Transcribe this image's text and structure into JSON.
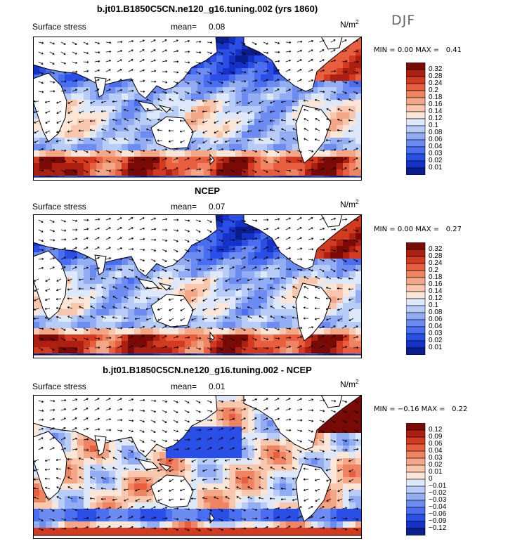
{
  "season": "DJF",
  "colorbar_palette": [
    "#0a1e8c",
    "#1432c8",
    "#2a4fe6",
    "#4a6ef0",
    "#6c8cf2",
    "#93adf5",
    "#b8ccf8",
    "#dde8fb",
    "#fbe6d8",
    "#f8c7ae",
    "#f4a787",
    "#ef8462",
    "#e85e3f",
    "#d33b21",
    "#ad1f10",
    "#7a0a05"
  ],
  "panels": [
    {
      "title": "b.jt01.B1850C5CN.ne120_g16.tuning.002 (yrs 1860)",
      "field": "Surface stress",
      "mean_label": "mean=",
      "mean": "0.08",
      "units": "N/m",
      "units_exp": "2",
      "min_label": "MIN =",
      "min": "0.00",
      "max_label": "MAX =",
      "max": "0.41",
      "colorbar_ticks": [
        "0.32",
        "0.28",
        "0.24",
        "0.2",
        "0.18",
        "0.16",
        "0.14",
        "0.12",
        "0.1",
        "0.08",
        "0.06",
        "0.04",
        "0.03",
        "0.02",
        "0.01"
      ]
    },
    {
      "title": "NCEP",
      "field": "Surface stress",
      "mean_label": "mean=",
      "mean": "0.07",
      "units": "N/m",
      "units_exp": "2",
      "min_label": "MIN =",
      "min": "0.00",
      "max_label": "MAX =",
      "max": "0.27",
      "colorbar_ticks": [
        "0.32",
        "0.28",
        "0.24",
        "0.2",
        "0.18",
        "0.16",
        "0.14",
        "0.12",
        "0.1",
        "0.08",
        "0.06",
        "0.04",
        "0.03",
        "0.02",
        "0.01"
      ]
    },
    {
      "title": "b.jt01.B1850C5CN.ne120_g16.tuning.002 - NCEP",
      "field": "Surface stress",
      "mean_label": "mean=",
      "mean": "0.01",
      "units": "N/m",
      "units_exp": "2",
      "min_label": "MIN =",
      "min": "−0.16",
      "max_label": "MAX =",
      "max": "0.22",
      "colorbar_ticks": [
        "0.12",
        "0.09",
        "0.06",
        "0.04",
        "0.03",
        "0.02",
        "0.01",
        "0",
        "−0.01",
        "−0.02",
        "−0.03",
        "−0.04",
        "−0.06",
        "−0.09",
        "−0.12"
      ]
    }
  ],
  "chart_data": [
    {
      "type": "heatmap",
      "title": "b.jt01.B1850C5CN.ne120_g16.tuning.002 (yrs 1860)",
      "field": "Surface stress",
      "units": "N/m2",
      "mean": 0.08,
      "min": 0.0,
      "max": 0.41,
      "colorbar_levels": [
        0.01,
        0.02,
        0.03,
        0.04,
        0.06,
        0.08,
        0.1,
        0.12,
        0.14,
        0.16,
        0.18,
        0.2,
        0.24,
        0.28,
        0.32
      ],
      "map": "global ocean, vectors overlaid"
    },
    {
      "type": "heatmap",
      "title": "NCEP",
      "field": "Surface stress",
      "units": "N/m2",
      "mean": 0.07,
      "min": 0.0,
      "max": 0.27,
      "colorbar_levels": [
        0.01,
        0.02,
        0.03,
        0.04,
        0.06,
        0.08,
        0.1,
        0.12,
        0.14,
        0.16,
        0.18,
        0.2,
        0.24,
        0.28,
        0.32
      ],
      "map": "global ocean, vectors overlaid"
    },
    {
      "type": "heatmap",
      "title": "b.jt01.B1850C5CN.ne120_g16.tuning.002 - NCEP",
      "field": "Surface stress",
      "units": "N/m2",
      "mean": 0.01,
      "min": -0.16,
      "max": 0.22,
      "colorbar_levels": [
        -0.12,
        -0.09,
        -0.06,
        -0.04,
        -0.03,
        -0.02,
        -0.01,
        0,
        0.01,
        0.02,
        0.03,
        0.04,
        0.06,
        0.09,
        0.12
      ],
      "map": "global ocean, vectors overlaid"
    }
  ]
}
